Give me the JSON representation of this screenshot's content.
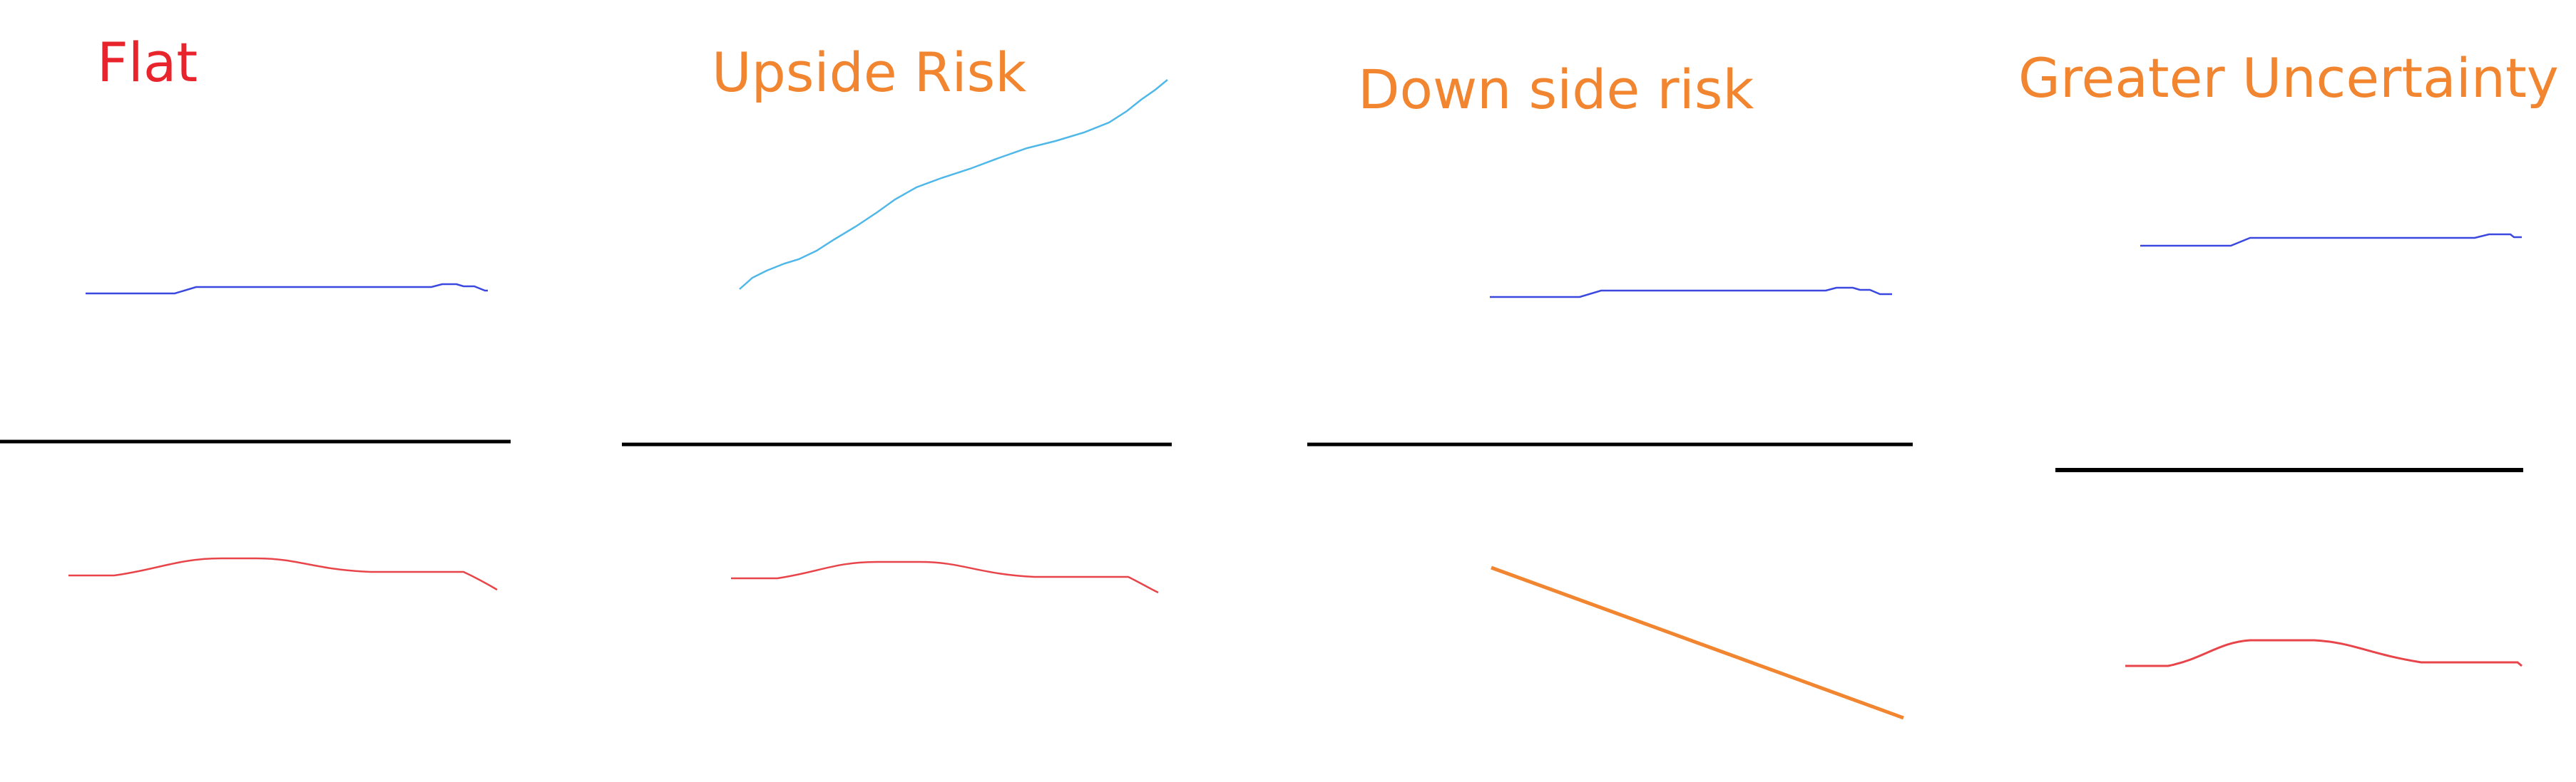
{
  "panels": [
    {
      "key": "flat",
      "title": "Flat",
      "title_color": "#e8252d"
    },
    {
      "key": "upside",
      "title": "Upside Risk",
      "title_color": "#f28530"
    },
    {
      "key": "down",
      "title": "Down side risk",
      "title_color": "#f28530"
    },
    {
      "key": "greater",
      "title": "Greater Uncertainty",
      "title_color": "#f28530"
    }
  ],
  "colors": {
    "upper_line": "#3b48e0",
    "upside_line": "#4fb8e8",
    "baseline": "#000000",
    "lower_line": "#e8454a",
    "downside_line": "#f28530"
  }
}
